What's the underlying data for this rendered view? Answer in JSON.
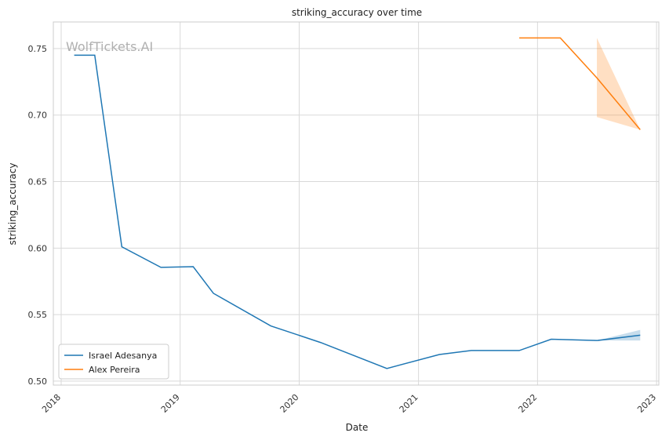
{
  "chart_data": {
    "type": "line",
    "title": "striking_accuracy over time",
    "xlabel": "Date",
    "ylabel": "striking_accuracy",
    "watermark": "WolfTickets.AI",
    "xlim": [
      "2017-12-08",
      "2023-01-08"
    ],
    "ylim": [
      0.497,
      0.77
    ],
    "x_ticks": [
      "2018",
      "2019",
      "2020",
      "2021",
      "2022",
      "2023"
    ],
    "y_ticks": [
      "0.50",
      "0.55",
      "0.60",
      "0.65",
      "0.70",
      "0.75"
    ],
    "y_tick_values": [
      0.5,
      0.55,
      0.6,
      0.65,
      0.7,
      0.75
    ],
    "grid": true,
    "legend_position": "lower-left",
    "series": [
      {
        "name": "Israel Adesanya",
        "color": "#1f77b4",
        "points": [
          {
            "x": "2018-02-10",
            "y": 0.745
          },
          {
            "x": "2018-04-14",
            "y": 0.745
          },
          {
            "x": "2018-07-06",
            "y": 0.601
          },
          {
            "x": "2018-11-03",
            "y": 0.5855
          },
          {
            "x": "2019-02-10",
            "y": 0.586
          },
          {
            "x": "2019-04-13",
            "y": 0.566
          },
          {
            "x": "2019-10-06",
            "y": 0.5415
          },
          {
            "x": "2020-03-07",
            "y": 0.529
          },
          {
            "x": "2020-09-26",
            "y": 0.5095
          },
          {
            "x": "2021-03-06",
            "y": 0.52
          },
          {
            "x": "2021-06-12",
            "y": 0.523
          },
          {
            "x": "2021-11-06",
            "y": 0.523
          },
          {
            "x": "2022-02-12",
            "y": 0.5315
          },
          {
            "x": "2022-07-02",
            "y": 0.5305
          },
          {
            "x": "2022-11-12",
            "y": 0.5345
          }
        ],
        "band": [
          {
            "x": "2022-07-02",
            "low": 0.5305,
            "high": 0.5305
          },
          {
            "x": "2022-11-12",
            "low": 0.5305,
            "high": 0.5385
          }
        ]
      },
      {
        "name": "Alex Pereira",
        "color": "#ff7f0e",
        "points": [
          {
            "x": "2021-11-06",
            "y": 0.758
          },
          {
            "x": "2022-03-12",
            "y": 0.758
          },
          {
            "x": "2022-07-02",
            "y": 0.728
          },
          {
            "x": "2022-11-12",
            "y": 0.689
          }
        ],
        "band": [
          {
            "x": "2022-07-02",
            "low": 0.6985,
            "high": 0.758
          },
          {
            "x": "2022-11-12",
            "low": 0.689,
            "high": 0.689
          }
        ]
      }
    ]
  }
}
